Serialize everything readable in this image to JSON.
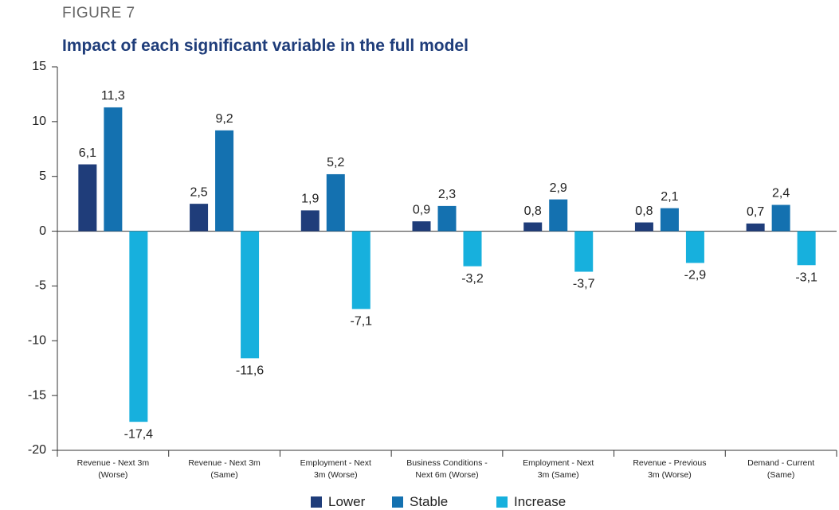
{
  "chart_data": {
    "type": "bar",
    "title": "FIGURE 7",
    "subtitle": "Impact of each significant variable in the full model",
    "categories": [
      "Revenue - Next 3m\n(Worse)",
      "Revenue - Next 3m\n(Same)",
      "Employment - Next\n3m (Worse)",
      "Business Conditions -\nNext 6m (Worse)",
      "Employment - Next\n3m (Same)",
      "Revenue - Previous\n3m (Worse)",
      "Demand - Current\n(Same)"
    ],
    "series": [
      {
        "name": "Lower",
        "color": "#1f3d7a",
        "values": [
          6.1,
          2.5,
          1.9,
          0.9,
          0.8,
          0.8,
          0.7
        ],
        "value_labels": [
          "6,1",
          "2,5",
          "1,9",
          "0,9",
          "0,8",
          "0,8",
          "0,7"
        ]
      },
      {
        "name": "Stable",
        "color": "#1471b0",
        "values": [
          11.3,
          9.2,
          5.2,
          2.3,
          2.9,
          2.1,
          2.4
        ],
        "value_labels": [
          "11,3",
          "9,2",
          "5,2",
          "2,3",
          "2,9",
          "2,1",
          "2,4"
        ]
      },
      {
        "name": "Increase",
        "color": "#17b0dd",
        "values": [
          -17.4,
          -11.6,
          -7.1,
          -3.2,
          -3.7,
          -2.9,
          -3.1
        ],
        "value_labels": [
          "-17,4",
          "-11,6",
          "-7,1",
          "-3,2",
          "-3,7",
          "-2,9",
          "-3,1"
        ]
      }
    ],
    "ylim": [
      -20,
      15
    ],
    "yticks": [
      15,
      10,
      5,
      0,
      -5,
      -10,
      -15,
      -20
    ]
  }
}
